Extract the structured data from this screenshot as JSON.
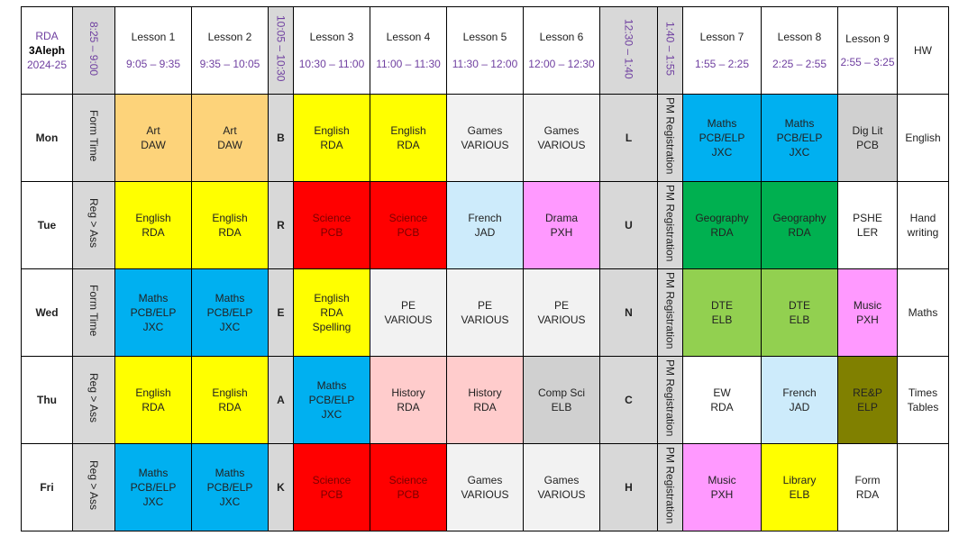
{
  "header": {
    "corner": {
      "line1": "RDA",
      "line2": "3Aleph",
      "line3": "2024-25"
    },
    "reg_time": "8:25 – 9:00",
    "break1": "10:05 – 10:30",
    "lunch": "12:30 – 1:40",
    "pm_reg_time": "1:40 – 1:55",
    "hw": "HW",
    "lessons": [
      {
        "name": "Lesson 1",
        "time": "9:05 – 9:35"
      },
      {
        "name": "Lesson 2",
        "time": "9:35 – 10:05"
      },
      {
        "name": "Lesson 3",
        "time": "10:30 – 11:00"
      },
      {
        "name": "Lesson 4",
        "time": "11:00 – 11:30"
      },
      {
        "name": "Lesson 5",
        "time": "11:30 – 12:00"
      },
      {
        "name": "Lesson 6",
        "time": "12:00 – 12:30"
      },
      {
        "name": "Lesson 7",
        "time": "1:55 – 2:25"
      },
      {
        "name": "Lesson 8",
        "time": "2:25 – 2:55"
      },
      {
        "name": "Lesson 9",
        "time": "2:55 – 3:25"
      }
    ]
  },
  "colors": {
    "orange": "#fdd37a",
    "yellow": "#ffff00",
    "light": "#f2f2f2",
    "blue": "#00b0f0",
    "silver": "#d0d0d0",
    "red": "#ff0000",
    "lblue": "#cdebfb",
    "pink": "#ff99ff",
    "green": "#00b050",
    "white": "#ffffff",
    "lgreen": "#92d050",
    "rose": "#ffcccc",
    "olive": "#808000"
  },
  "days": [
    {
      "name": "Mon",
      "reg": "Form Time",
      "break_letter": "B",
      "lunch_letter": "L",
      "pm_reg": "PM Registration",
      "hw": "English",
      "lessons": [
        {
          "lines": [
            "Art",
            "DAW"
          ],
          "color": "orange"
        },
        {
          "lines": [
            "Art",
            "DAW"
          ],
          "color": "orange"
        },
        {
          "lines": [
            "English",
            "RDA"
          ],
          "color": "yellow"
        },
        {
          "lines": [
            "English",
            "RDA"
          ],
          "color": "yellow"
        },
        {
          "lines": [
            "Games",
            "VARIOUS"
          ],
          "color": "light"
        },
        {
          "lines": [
            "Games",
            "VARIOUS"
          ],
          "color": "light"
        },
        {
          "lines": [
            "Maths",
            "PCB/ELP",
            "JXC"
          ],
          "color": "blue"
        },
        {
          "lines": [
            "Maths",
            "PCB/ELP",
            "JXC"
          ],
          "color": "blue"
        },
        {
          "lines": [
            "Dig Lit",
            "PCB"
          ],
          "color": "silver"
        }
      ]
    },
    {
      "name": "Tue",
      "reg": "Reg > Ass",
      "break_letter": "R",
      "lunch_letter": "U",
      "pm_reg": "PM Registration",
      "hw": "Hand writing",
      "lessons": [
        {
          "lines": [
            "English",
            "RDA"
          ],
          "color": "yellow"
        },
        {
          "lines": [
            "English",
            "RDA"
          ],
          "color": "yellow"
        },
        {
          "lines": [
            "Science",
            "PCB"
          ],
          "color": "red"
        },
        {
          "lines": [
            "Science",
            "PCB"
          ],
          "color": "red"
        },
        {
          "lines": [
            "French",
            "JAD"
          ],
          "color": "lblue"
        },
        {
          "lines": [
            "Drama",
            "PXH"
          ],
          "color": "pink"
        },
        {
          "lines": [
            "Geography",
            "RDA"
          ],
          "color": "green"
        },
        {
          "lines": [
            "Geography",
            "RDA"
          ],
          "color": "green"
        },
        {
          "lines": [
            "PSHE",
            "LER"
          ],
          "color": "white"
        }
      ]
    },
    {
      "name": "Wed",
      "reg": "Form Time",
      "break_letter": "E",
      "lunch_letter": "N",
      "pm_reg": "PM Registration",
      "hw": "Maths",
      "lessons": [
        {
          "lines": [
            "Maths",
            "PCB/ELP",
            "JXC"
          ],
          "color": "blue"
        },
        {
          "lines": [
            "Maths",
            "PCB/ELP",
            "JXC"
          ],
          "color": "blue"
        },
        {
          "lines": [
            "English",
            "RDA",
            "Spelling"
          ],
          "color": "yellow"
        },
        {
          "lines": [
            "PE",
            "VARIOUS"
          ],
          "color": "light"
        },
        {
          "lines": [
            "PE",
            "VARIOUS"
          ],
          "color": "light"
        },
        {
          "lines": [
            "PE",
            "VARIOUS"
          ],
          "color": "light"
        },
        {
          "lines": [
            "DTE",
            "ELB"
          ],
          "color": "lgreen"
        },
        {
          "lines": [
            "DTE",
            "ELB"
          ],
          "color": "lgreen"
        },
        {
          "lines": [
            "Music",
            "PXH"
          ],
          "color": "pink"
        }
      ]
    },
    {
      "name": "Thu",
      "reg": "Reg > Ass",
      "break_letter": "A",
      "lunch_letter": "C",
      "pm_reg": "PM Registration",
      "hw": "Times Tables",
      "lessons": [
        {
          "lines": [
            "English",
            "RDA"
          ],
          "color": "yellow"
        },
        {
          "lines": [
            "English",
            "RDA"
          ],
          "color": "yellow"
        },
        {
          "lines": [
            "Maths",
            "PCB/ELP",
            "JXC"
          ],
          "color": "blue"
        },
        {
          "lines": [
            "History",
            "RDA"
          ],
          "color": "rose"
        },
        {
          "lines": [
            "History",
            "RDA"
          ],
          "color": "rose"
        },
        {
          "lines": [
            "Comp Sci",
            "ELB"
          ],
          "color": "silver"
        },
        {
          "lines": [
            "EW",
            "RDA"
          ],
          "color": "white"
        },
        {
          "lines": [
            "French",
            "JAD"
          ],
          "color": "lblue"
        },
        {
          "lines": [
            "RE&P",
            "ELP"
          ],
          "color": "olive"
        }
      ]
    },
    {
      "name": "Fri",
      "reg": "Reg > Ass",
      "break_letter": "K",
      "lunch_letter": "H",
      "pm_reg": "PM Registration",
      "hw": "",
      "lessons": [
        {
          "lines": [
            "Maths",
            "PCB/ELP",
            "JXC"
          ],
          "color": "blue"
        },
        {
          "lines": [
            "Maths",
            "PCB/ELP",
            "JXC"
          ],
          "color": "blue"
        },
        {
          "lines": [
            "Science",
            "PCB"
          ],
          "color": "red"
        },
        {
          "lines": [
            "Science",
            "PCB"
          ],
          "color": "red"
        },
        {
          "lines": [
            "Games",
            "VARIOUS"
          ],
          "color": "light"
        },
        {
          "lines": [
            "Games",
            "VARIOUS"
          ],
          "color": "light"
        },
        {
          "lines": [
            "Music",
            "PXH"
          ],
          "color": "pink"
        },
        {
          "lines": [
            "Library",
            "ELB"
          ],
          "color": "yellow"
        },
        {
          "lines": [
            "Form",
            "RDA"
          ],
          "color": "white"
        }
      ]
    }
  ]
}
